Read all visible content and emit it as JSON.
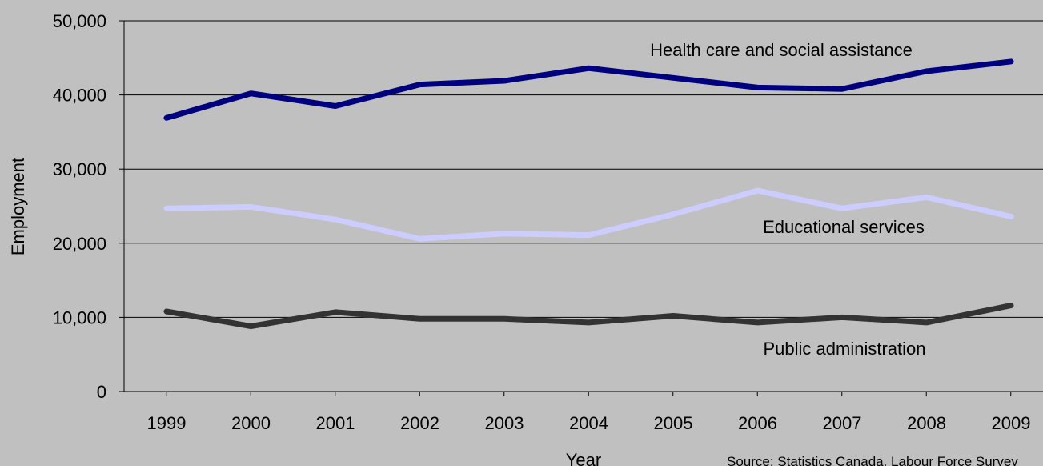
{
  "chart_data": {
    "type": "line",
    "title": "",
    "xlabel": "Year",
    "ylabel": "Employment",
    "categories": [
      "1999",
      "2000",
      "2001",
      "2002",
      "2003",
      "2004",
      "2005",
      "2006",
      "2007",
      "2008",
      "2009"
    ],
    "ylim": [
      0,
      50000
    ],
    "yticks": [
      0,
      10000,
      20000,
      30000,
      40000,
      50000
    ],
    "ytick_labels": [
      "0",
      "10,000",
      "20,000",
      "30,000",
      "40,000",
      "50,000"
    ],
    "grid": true,
    "series": [
      {
        "name": "Health care and social assistance",
        "color": "#00007f",
        "values": [
          36900,
          40200,
          38500,
          41400,
          41900,
          43600,
          42300,
          41000,
          40800,
          43200,
          44500
        ]
      },
      {
        "name": "Educational services",
        "color": "#ccccff",
        "values": [
          24700,
          24900,
          23200,
          20600,
          21300,
          21100,
          23900,
          27100,
          24700,
          26200,
          23600
        ]
      },
      {
        "name": "Public administration",
        "color": "#333333",
        "values": [
          10800,
          8800,
          10700,
          9800,
          9800,
          9300,
          10200,
          9300,
          10000,
          9300,
          11600
        ]
      }
    ],
    "source": "Source: Statistics Canada, Labour Force Survey"
  }
}
